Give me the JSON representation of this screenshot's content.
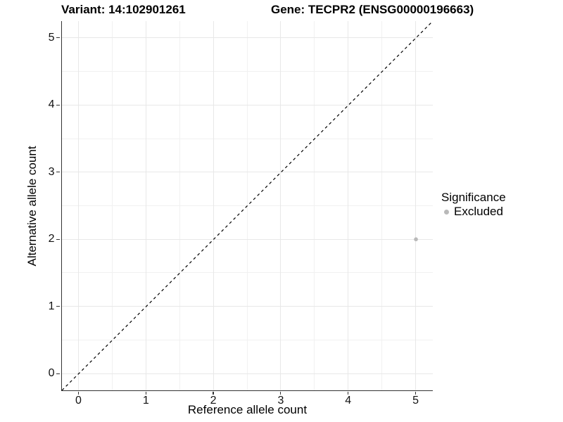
{
  "chart_data": {
    "type": "scatter",
    "title_left": "Variant: 14:102901261",
    "title_right": "Gene: TECPR2 (ENSG00000196663)",
    "xlabel": "Reference allele count",
    "ylabel": "Alternative allele count",
    "xlim": [
      -0.25,
      5.25
    ],
    "ylim": [
      -0.25,
      5.25
    ],
    "xticks": [
      0,
      1,
      2,
      3,
      4,
      5
    ],
    "yticks": [
      0,
      1,
      2,
      3,
      4,
      5
    ],
    "xminor": [
      0.5,
      1.5,
      2.5,
      3.5,
      4.5
    ],
    "yminor": [
      0.5,
      1.5,
      2.5,
      3.5,
      4.5
    ],
    "grid": true,
    "series": [
      {
        "name": "Excluded",
        "color": "#b9b9b9",
        "point_radius": 2.8,
        "points": [
          {
            "x": 5,
            "y": 2
          }
        ]
      }
    ],
    "reference_line": {
      "kind": "identity y=x",
      "from": [
        -0.25,
        -0.25
      ],
      "to": [
        5.25,
        5.25
      ],
      "style": "dashed",
      "color": "#000000"
    },
    "legend": {
      "position": "right",
      "title": "Significance",
      "entries": [
        {
          "label": "Excluded",
          "color": "#b9b9b9"
        }
      ]
    }
  },
  "colors": {
    "background": "#ffffff",
    "grid_major": "#e8e8e8",
    "grid_minor": "#f1f1f1",
    "axis_line": "#333333",
    "text": "#000000"
  }
}
